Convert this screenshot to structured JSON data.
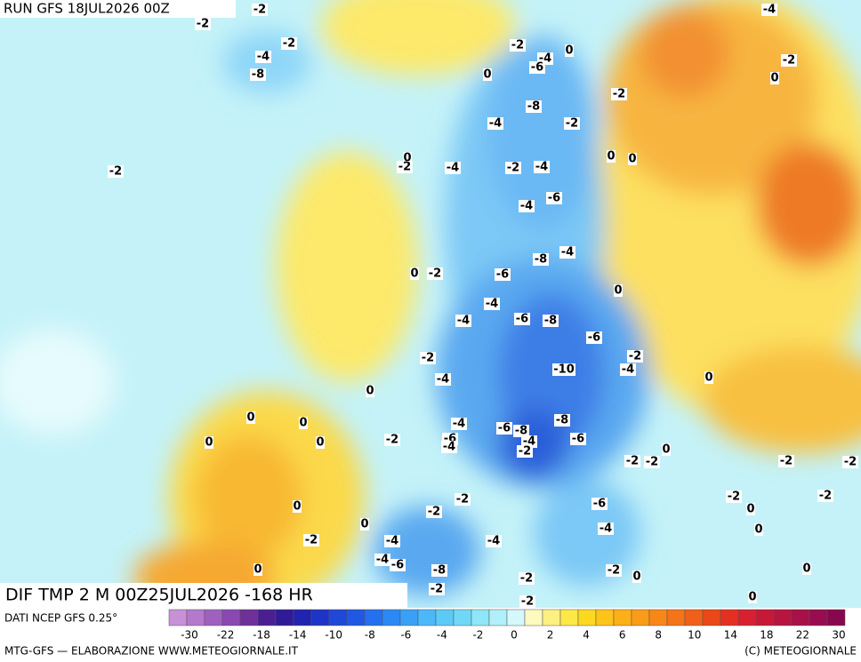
{
  "header": {
    "run": "RUN GFS 18JUL2026 00Z",
    "field": "DIF TMP 2 M 00Z25JUL2026 -168 HR"
  },
  "footer": {
    "source": "DATI NCEP GFS 0.25°",
    "credit": "MTG-GFS — ELABORAZIONE WWW.METEOGIORNALE.IT",
    "copyright": "(C) METEOGIORNALE"
  },
  "colorbar": {
    "ticks": [
      "-30",
      "-22",
      "-18",
      "-14",
      "-10",
      "-8",
      "-6",
      "-4",
      "-2",
      "0",
      "2",
      "4",
      "6",
      "8",
      "10",
      "14",
      "18",
      "22",
      "30"
    ]
  },
  "labels": [
    "-2",
    "-2",
    "-4",
    "-2",
    "-4",
    "-8",
    "-2",
    "0",
    "-4",
    "-6",
    "-2",
    "0",
    "0",
    "-2",
    "-8",
    "-4",
    "-2",
    "-2",
    "0",
    "-2",
    "-4",
    "-2",
    "-4",
    "0",
    "0",
    "-6",
    "-4",
    "-4",
    "-8",
    "0",
    "-2",
    "-6",
    "0",
    "-4",
    "-6",
    "-8",
    "-4",
    "-6",
    "-2",
    "-2",
    "-4",
    "-10",
    "0",
    "-4",
    "0",
    "0",
    "0",
    "-4",
    "-8",
    "-6",
    "-8",
    "-4",
    "-6",
    "-2",
    "0",
    "0",
    "-6",
    "-4",
    "-2",
    "0",
    "-2",
    "-2",
    "-2",
    "-2",
    "-2",
    "-2",
    "-2",
    "-6",
    "0",
    "0",
    "-2",
    "0",
    "-4",
    "0",
    "-2",
    "-4",
    "-4",
    "-4",
    "-6",
    "-8",
    "0",
    "-2",
    "0",
    "-2",
    "0",
    "-2",
    "-2",
    "0"
  ]
}
